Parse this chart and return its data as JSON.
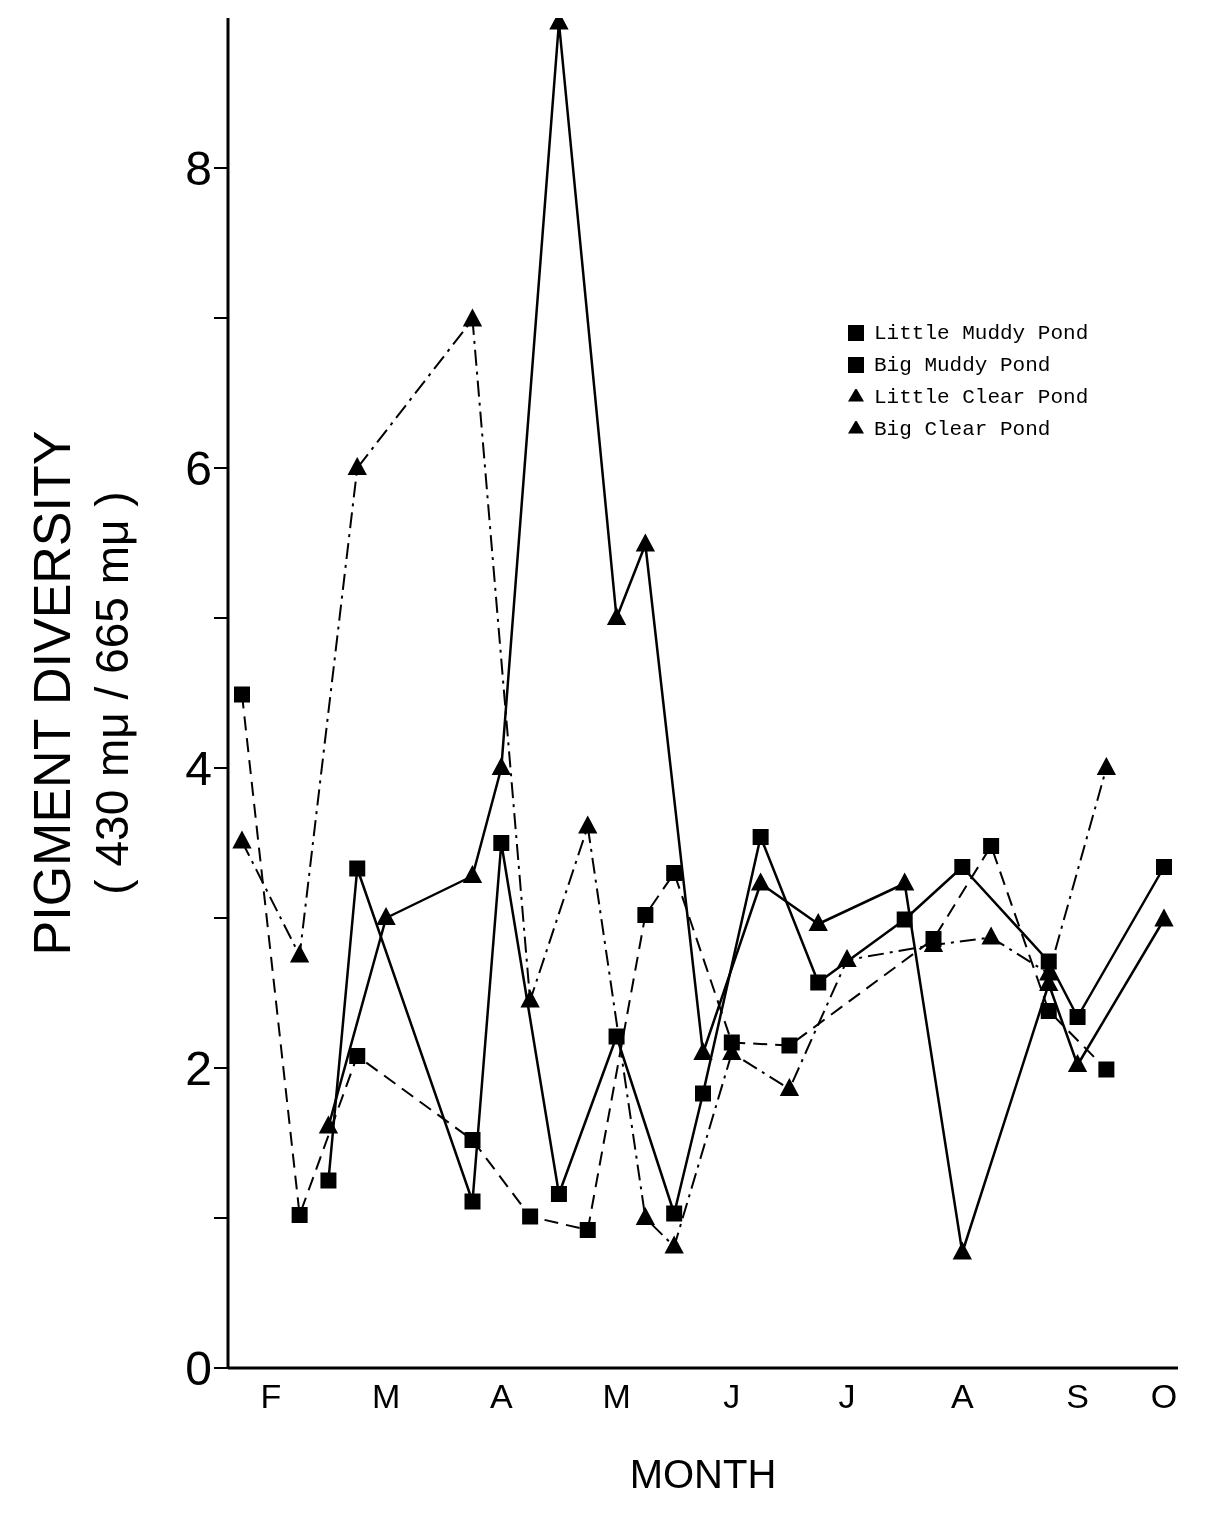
{
  "chart_data": {
    "type": "line",
    "xlabel": "MONTH",
    "ylabel": "PIGMENT DIVERSITY\n( 430 mμ / 665 mμ )",
    "categories": [
      null,
      "F",
      null,
      null,
      null,
      "M",
      null,
      null,
      null,
      "A",
      null,
      null,
      null,
      "M",
      null,
      null,
      null,
      "J",
      null,
      null,
      null,
      "J",
      null,
      null,
      null,
      "A",
      null,
      null,
      null,
      "S",
      null,
      null,
      "O"
    ],
    "ylim": [
      0,
      9
    ],
    "yticks": [
      0,
      {
        "value": 1,
        "label": null
      },
      2,
      {
        "value": 3,
        "label": null
      },
      4,
      {
        "value": 5,
        "label": null
      },
      6,
      {
        "value": 7,
        "label": null
      },
      8
    ],
    "legend": "top right",
    "series": [
      {
        "name": "Little Muddy Pond",
        "color": "#000000",
        "marker": "square",
        "line_style": "dashed",
        "values": [
          4.49,
          null,
          1.02,
          null,
          2.08,
          null,
          null,
          null,
          1.52,
          null,
          1.01,
          null,
          0.92,
          null,
          3.02,
          3.3,
          null,
          2.17,
          null,
          2.15,
          null,
          null,
          null,
          null,
          2.86,
          null,
          3.48,
          null,
          2.38,
          null,
          1.99,
          null,
          null
        ]
      },
      {
        "name": "Big Muddy Pond",
        "color": "#000000",
        "marker": "square",
        "line_style": "solid",
        "values": [
          null,
          null,
          null,
          1.25,
          3.33,
          null,
          null,
          null,
          1.11,
          3.5,
          null,
          1.16,
          null,
          2.21,
          null,
          1.03,
          1.83,
          null,
          3.54,
          null,
          2.57,
          null,
          null,
          2.99,
          null,
          3.34,
          null,
          null,
          2.71,
          2.34,
          null,
          null,
          3.34
        ]
      },
      {
        "name": "Little Clear Pond",
        "color": "#000000",
        "marker": "triangle",
        "line_style": "solid",
        "values": [
          null,
          null,
          null,
          1.61,
          null,
          3.0,
          null,
          null,
          3.28,
          4.0,
          null,
          8.97,
          null,
          5.0,
          5.49,
          null,
          2.1,
          null,
          3.23,
          null,
          2.96,
          null,
          null,
          3.23,
          null,
          0.77,
          null,
          null,
          2.56,
          2.02,
          null,
          null,
          2.99
        ]
      },
      {
        "name": "Big Clear Pond",
        "color": "#000000",
        "marker": "triangle",
        "line_style": "dashdot",
        "values": [
          3.51,
          null,
          2.75,
          null,
          6.0,
          null,
          null,
          null,
          6.99,
          null,
          2.45,
          null,
          3.61,
          null,
          1.0,
          0.81,
          null,
          2.1,
          null,
          1.86,
          null,
          2.72,
          null,
          null,
          2.82,
          null,
          2.87,
          null,
          2.63,
          null,
          4.0,
          null,
          null
        ]
      }
    ]
  }
}
